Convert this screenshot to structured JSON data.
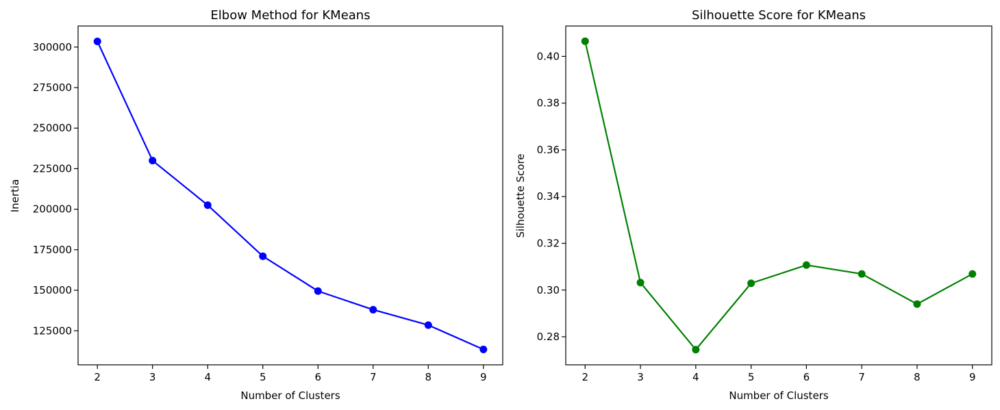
{
  "chart_data": [
    {
      "type": "line",
      "title": "Elbow Method for KMeans",
      "xlabel": "Number of Clusters",
      "ylabel": "Inertia",
      "x": [
        2,
        3,
        4,
        5,
        6,
        7,
        8,
        9
      ],
      "series": [
        {
          "values": [
            303500,
            230000,
            202500,
            171000,
            149500,
            138000,
            128500,
            113500
          ],
          "color": "#0000ff",
          "marker": "circle"
        }
      ],
      "xlim": [
        1.65,
        9.35
      ],
      "ylim": [
        104000,
        313000
      ],
      "xticks": [
        2,
        3,
        4,
        5,
        6,
        7,
        8,
        9
      ],
      "yticks": [
        125000,
        150000,
        175000,
        200000,
        225000,
        250000,
        275000,
        300000
      ],
      "xtick_labels": [
        "2",
        "3",
        "4",
        "5",
        "6",
        "7",
        "8",
        "9"
      ],
      "ytick_labels": [
        "125000",
        "150000",
        "175000",
        "200000",
        "225000",
        "250000",
        "275000",
        "300000"
      ],
      "grid": false
    },
    {
      "type": "line",
      "title": "Silhouette Score for KMeans",
      "xlabel": "Number of Clusters",
      "ylabel": "Silhouette Score",
      "x": [
        2,
        3,
        4,
        5,
        6,
        7,
        8,
        9
      ],
      "series": [
        {
          "values": [
            0.4065,
            0.3032,
            0.2745,
            0.3029,
            0.3107,
            0.3069,
            0.294,
            0.3069
          ],
          "color": "#008000",
          "marker": "circle"
        }
      ],
      "xlim": [
        1.65,
        9.35
      ],
      "ylim": [
        0.268,
        0.413
      ],
      "xticks": [
        2,
        3,
        4,
        5,
        6,
        7,
        8,
        9
      ],
      "yticks": [
        0.28,
        0.3,
        0.32,
        0.34,
        0.36,
        0.38,
        0.4
      ],
      "xtick_labels": [
        "2",
        "3",
        "4",
        "5",
        "6",
        "7",
        "8",
        "9"
      ],
      "ytick_labels": [
        "0.28",
        "0.30",
        "0.32",
        "0.34",
        "0.36",
        "0.38",
        "0.40"
      ],
      "grid": false
    }
  ]
}
